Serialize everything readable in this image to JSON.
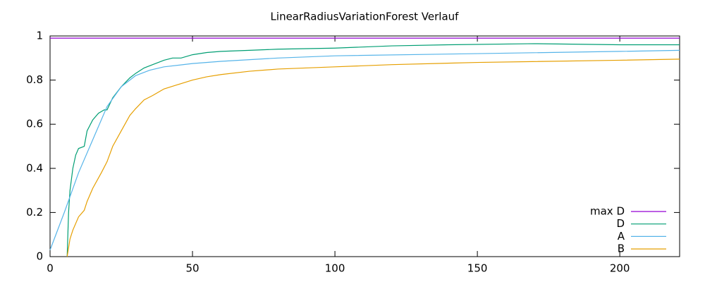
{
  "chart_data": {
    "type": "line",
    "title": "LinearRadiusVariationForest Verlauf",
    "xlim": [
      0,
      221
    ],
    "ylim": [
      0,
      1
    ],
    "xticks": [
      0,
      50,
      100,
      150,
      200
    ],
    "yticks": [
      0,
      0.2,
      0.4,
      0.6,
      0.8,
      1
    ],
    "legend": "bottom-right",
    "series": [
      {
        "name": "max D",
        "color": "#9400d3",
        "x": [
          0,
          221
        ],
        "values": [
          0.99,
          0.99
        ]
      },
      {
        "name": "D",
        "color": "#009e73",
        "x": [
          6,
          6.5,
          7,
          8,
          9,
          10,
          12,
          13,
          15,
          17,
          19,
          20,
          22,
          25,
          28,
          30,
          33,
          36,
          40,
          43,
          46,
          50,
          55,
          60,
          70,
          80,
          100,
          120,
          140,
          170,
          200,
          221
        ],
        "values": [
          0,
          0.2,
          0.3,
          0.4,
          0.46,
          0.49,
          0.5,
          0.57,
          0.62,
          0.65,
          0.665,
          0.665,
          0.72,
          0.77,
          0.81,
          0.83,
          0.855,
          0.87,
          0.89,
          0.9,
          0.9,
          0.915,
          0.925,
          0.93,
          0.935,
          0.94,
          0.945,
          0.955,
          0.96,
          0.965,
          0.96,
          0.96
        ]
      },
      {
        "name": "A",
        "color": "#56b4e9",
        "x": [
          0,
          5,
          10,
          15,
          20,
          25,
          30,
          35,
          40,
          50,
          60,
          80,
          100,
          150,
          200,
          221
        ],
        "values": [
          0.03,
          0.2,
          0.38,
          0.53,
          0.68,
          0.77,
          0.82,
          0.845,
          0.86,
          0.875,
          0.885,
          0.9,
          0.91,
          0.92,
          0.93,
          0.935
        ]
      },
      {
        "name": "B",
        "color": "#e69f00",
        "x": [
          6,
          7,
          8,
          10,
          12,
          13,
          15,
          18,
          20,
          22,
          25,
          28,
          30,
          33,
          36,
          40,
          45,
          50,
          55,
          60,
          70,
          80,
          100,
          120,
          150,
          200,
          221
        ],
        "values": [
          0,
          0.08,
          0.12,
          0.18,
          0.21,
          0.25,
          0.31,
          0.38,
          0.43,
          0.5,
          0.57,
          0.64,
          0.67,
          0.71,
          0.73,
          0.76,
          0.78,
          0.8,
          0.815,
          0.825,
          0.84,
          0.85,
          0.86,
          0.87,
          0.88,
          0.89,
          0.895
        ]
      }
    ]
  }
}
